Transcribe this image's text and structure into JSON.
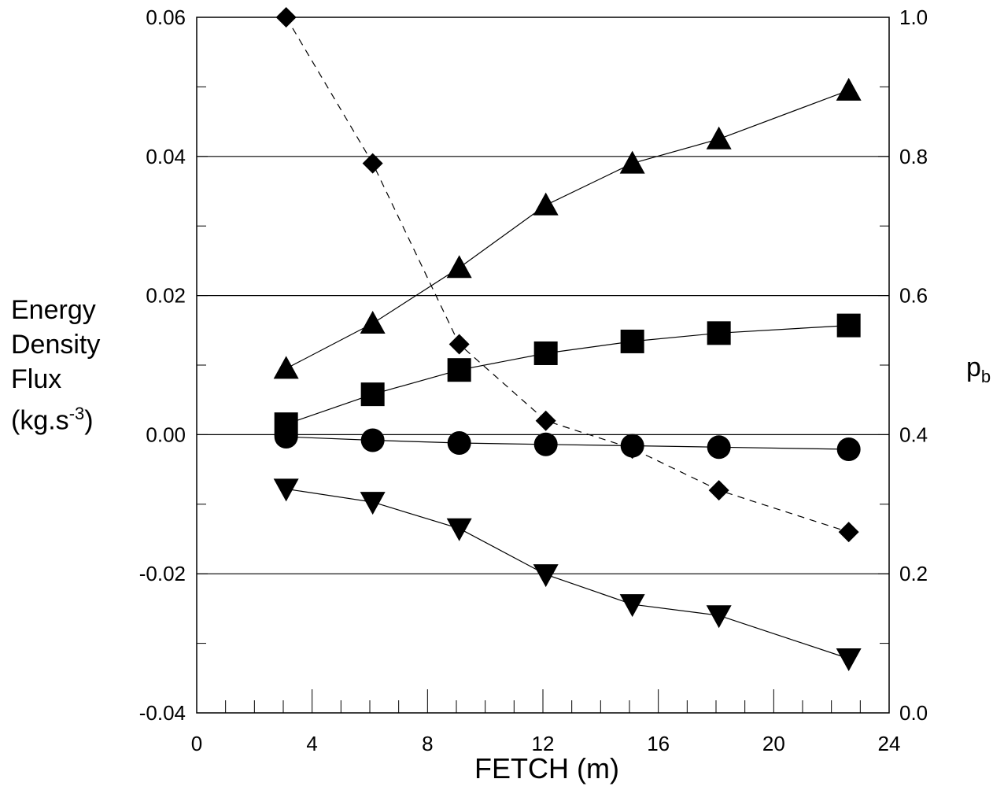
{
  "chart_data": {
    "type": "scatter",
    "xlabel": "FETCH (m)",
    "ylabel_left": {
      "lines": [
        "Energy",
        "Density",
        "Flux"
      ],
      "unit_base": "(kg.s",
      "unit_sup": "-3",
      "unit_close": ")"
    },
    "ylabel_right": {
      "base": "p",
      "sub": "b"
    },
    "xlim": [
      0,
      24
    ],
    "ylim_left": [
      -0.04,
      0.06
    ],
    "ylim_right": [
      0.0,
      1.0
    ],
    "x_ticks": [
      "0",
      "4",
      "8",
      "12",
      "16",
      "20",
      "24"
    ],
    "y_ticks_left": [
      "0.06",
      "0.04",
      "0.02",
      "0.00",
      "-0.02",
      "-0.04"
    ],
    "y_ticks_right": [
      "1.0",
      "0.8",
      "0.6",
      "0.4",
      "0.2",
      "0.0"
    ],
    "gridlines_y": [
      -0.02,
      0.0,
      0.02,
      0.04
    ],
    "series": [
      {
        "marker": "triangle-up",
        "axis": "left",
        "line": "solid",
        "x": [
          3.1,
          6.1,
          9.1,
          12.1,
          15.1,
          18.1,
          22.6
        ],
        "y": [
          0.0095,
          0.016,
          0.024,
          0.033,
          0.039,
          0.0425,
          0.0495
        ]
      },
      {
        "marker": "square",
        "axis": "left",
        "line": "solid",
        "x": [
          3.1,
          6.1,
          9.1,
          12.1,
          15.1,
          18.1,
          22.6
        ],
        "y": [
          0.0015,
          0.0058,
          0.0093,
          0.0117,
          0.0134,
          0.0146,
          0.0157
        ]
      },
      {
        "marker": "circle",
        "axis": "left",
        "line": "solid",
        "x": [
          3.1,
          6.1,
          9.1,
          12.1,
          15.1,
          18.1,
          22.6
        ],
        "y": [
          -0.0003,
          -0.0008,
          -0.0012,
          -0.0014,
          -0.0016,
          -0.0018,
          -0.0021
        ]
      },
      {
        "marker": "triangle-down",
        "axis": "left",
        "line": "solid",
        "x": [
          3.1,
          6.1,
          9.1,
          12.1,
          15.1,
          18.1,
          22.6
        ],
        "y": [
          -0.0078,
          -0.0097,
          -0.0135,
          -0.0201,
          -0.0244,
          -0.026,
          -0.0322
        ]
      },
      {
        "marker": "diamond",
        "axis": "right",
        "line": "dashed",
        "x": [
          3.1,
          6.1,
          9.1,
          12.1,
          15.1,
          18.1,
          22.6
        ],
        "y": [
          1.0,
          0.79,
          0.53,
          0.42,
          0.38,
          0.32,
          0.26
        ]
      }
    ]
  }
}
